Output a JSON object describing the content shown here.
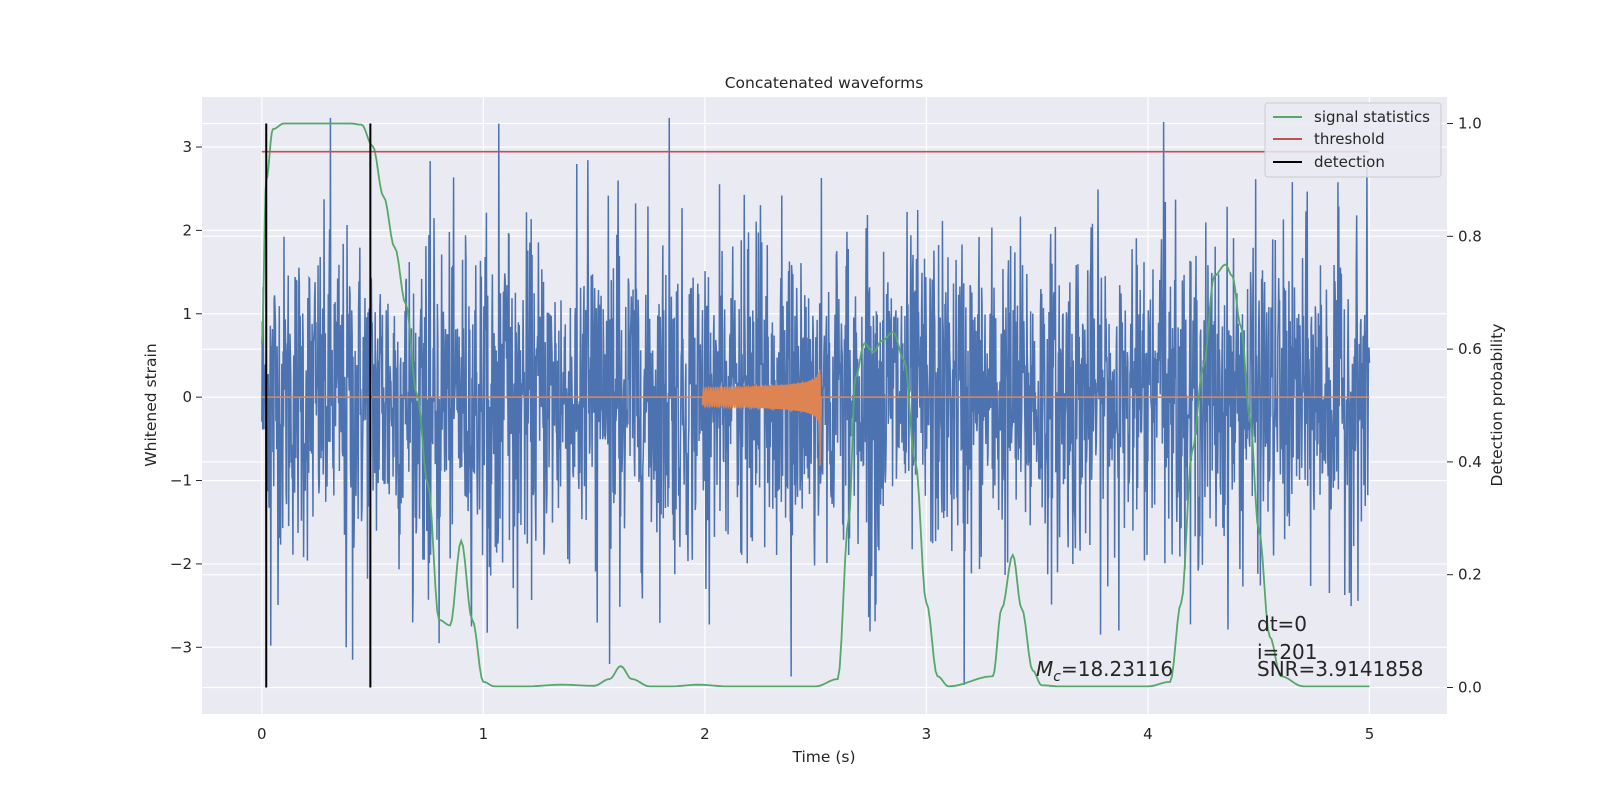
{
  "chart_data": {
    "type": "line",
    "title": "Concatenated waveforms",
    "xlabel": "Time (s)",
    "ylabel": "Whitened strain",
    "ylabel_right": "Detection probability",
    "xlim": [
      -0.27,
      5.35
    ],
    "ylim": [
      -3.8,
      3.6
    ],
    "ylim_right": [
      -0.047,
      1.047
    ],
    "x_ticks": [
      0,
      1,
      2,
      3,
      4,
      5
    ],
    "x_tick_labels": [
      "0",
      "1",
      "2",
      "3",
      "4",
      "5"
    ],
    "y_ticks": [
      -3,
      -2,
      -1,
      0,
      1,
      2,
      3
    ],
    "y_tick_labels": [
      "−3",
      "−2",
      "−1",
      "0",
      "1",
      "2",
      "3"
    ],
    "y_right_ticks": [
      0.0,
      0.2,
      0.4,
      0.6,
      0.8,
      1.0
    ],
    "y_right_tick_labels": [
      "0.0",
      "0.2",
      "0.4",
      "0.6",
      "0.8",
      "1.0"
    ],
    "grid": true,
    "legend_position": "top-right",
    "background": "#eaeaf2",
    "series": [
      {
        "name": "",
        "kind": "noise",
        "color": "#4c72b0",
        "x_range": [
          0,
          5
        ],
        "typical_range": [
          -1.7,
          1.7
        ],
        "peak_values": [
          {
            "x": 0.31,
            "y": 3.35
          },
          {
            "x": 1.07,
            "y": 3.28
          },
          {
            "x": 1.84,
            "y": 3.35
          },
          {
            "x": 4.07,
            "y": 3.3
          },
          {
            "x": 0.04,
            "y": -2.98
          },
          {
            "x": 0.38,
            "y": -3.0
          },
          {
            "x": 0.41,
            "y": -3.15
          },
          {
            "x": 1.57,
            "y": -3.2
          },
          {
            "x": 3.17,
            "y": -3.45
          },
          {
            "x": 2.39,
            "y": -3.35
          },
          {
            "x": 0.8,
            "y": -2.95
          }
        ]
      },
      {
        "name": "",
        "kind": "chirp",
        "color": "#dd8452",
        "x_range": [
          1.99,
          2.52
        ],
        "peak_amplitude": 0.88
      },
      {
        "name": "signal statistics",
        "color": "#55a868",
        "axis": "right",
        "x": [
          0.0,
          0.02,
          0.05,
          0.1,
          0.2,
          0.3,
          0.4,
          0.45,
          0.5,
          0.55,
          0.6,
          0.65,
          0.7,
          0.75,
          0.8,
          0.85,
          0.9,
          0.95,
          1.0,
          1.05,
          1.2,
          1.35,
          1.5,
          1.57,
          1.62,
          1.67,
          1.75,
          1.85,
          1.97,
          2.1,
          2.3,
          2.5,
          2.6,
          2.65,
          2.68,
          2.72,
          2.76,
          2.8,
          2.85,
          2.9,
          2.95,
          3.0,
          3.05,
          3.1,
          3.3,
          3.34,
          3.39,
          3.43,
          3.48,
          3.52,
          3.6,
          3.8,
          4.0,
          4.1,
          4.15,
          4.2,
          4.25,
          4.3,
          4.35,
          4.38,
          4.42,
          4.46,
          4.5,
          4.55,
          4.6,
          4.7,
          4.8,
          5.0
        ],
        "y": [
          0.61,
          0.9,
          0.99,
          1.0,
          1.0,
          1.0,
          1.0,
          0.998,
          0.96,
          0.87,
          0.78,
          0.68,
          0.52,
          0.36,
          0.12,
          0.11,
          0.26,
          0.12,
          0.01,
          0.002,
          0.002,
          0.005,
          0.003,
          0.015,
          0.038,
          0.015,
          0.002,
          0.002,
          0.005,
          0.002,
          0.002,
          0.002,
          0.015,
          0.3,
          0.55,
          0.61,
          0.595,
          0.615,
          0.63,
          0.58,
          0.4,
          0.15,
          0.02,
          0.002,
          0.02,
          0.14,
          0.235,
          0.14,
          0.03,
          0.004,
          0.002,
          0.002,
          0.002,
          0.01,
          0.15,
          0.42,
          0.57,
          0.73,
          0.75,
          0.73,
          0.64,
          0.48,
          0.28,
          0.09,
          0.02,
          0.002,
          0.002,
          0.002
        ]
      },
      {
        "name": "threshold",
        "color": "#c44e52",
        "axis": "right",
        "x": [
          0,
          5
        ],
        "y": [
          0.95,
          0.95
        ]
      },
      {
        "name": "detection",
        "color": "#000000",
        "kind": "vertical-lines",
        "x": [
          0.02,
          0.49
        ]
      }
    ],
    "annotations": [
      {
        "text": "dt=0",
        "x": 4.5,
        "y": -2.8
      },
      {
        "text": "i=201",
        "x": 4.5,
        "y": -3.1
      },
      {
        "text": "SNR=3.9141858",
        "x": 4.5,
        "y": -3.3
      },
      {
        "text": "=18.23116",
        "prefix": "M",
        "subscript": "c",
        "x": 3.5,
        "y": -3.3
      }
    ]
  }
}
